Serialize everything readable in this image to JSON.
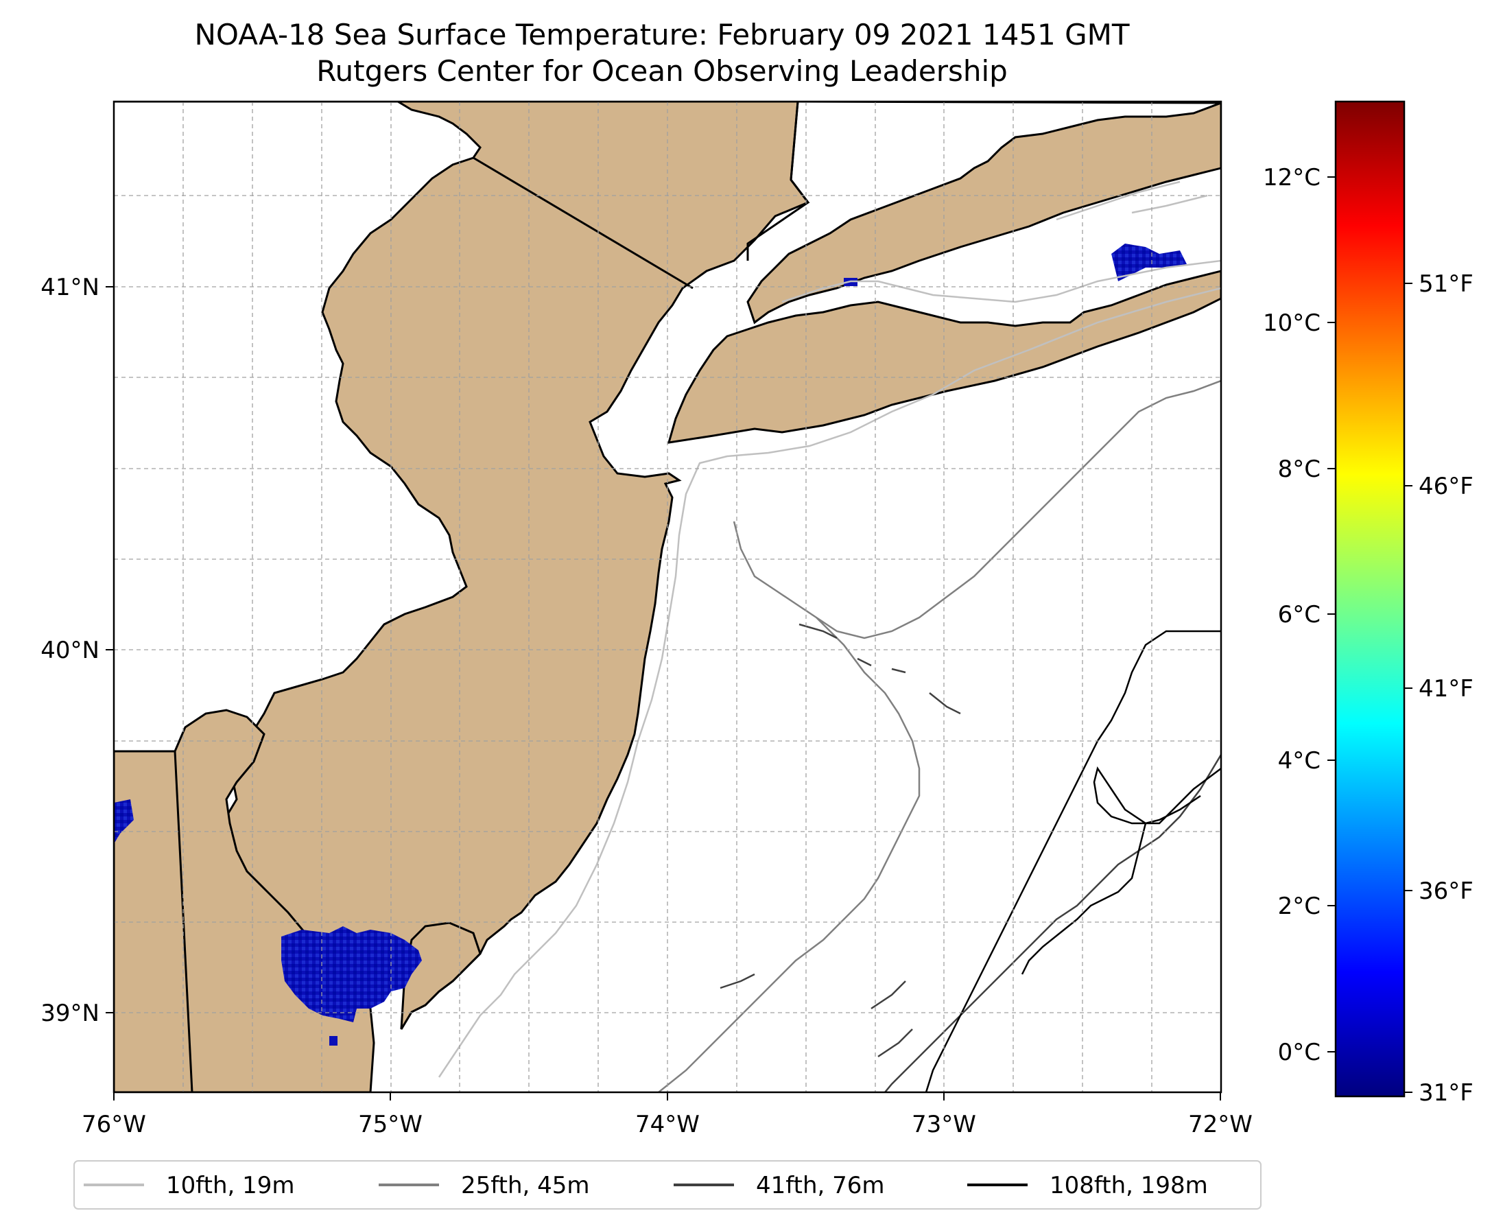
{
  "title": {
    "line1": "NOAA-18 Sea Surface Temperature: February 09 2021 1451 GMT",
    "line2": "Rutgers Center for Ocean Observing Leadership"
  },
  "map": {
    "lon_range": [
      -76,
      -72
    ],
    "lat_range": [
      38.7,
      41.5
    ],
    "lon_ticks": [
      "76°W",
      "75°W",
      "74°W",
      "73°W",
      "72°W"
    ],
    "lat_ticks": [
      "41°N",
      "40°N",
      "39°N"
    ],
    "grid": "dashed",
    "land_color": "#d2b48c",
    "ocean_color": "#ffffff"
  },
  "colorbar": {
    "colormap": "jet",
    "celsius_ticks": [
      "12°C",
      "10°C",
      "8°C",
      "6°C",
      "4°C",
      "2°C",
      "0°C"
    ],
    "fahrenheit_ticks": [
      "51°F",
      "46°F",
      "41°F",
      "36°F",
      "31°F"
    ],
    "colors": [
      "#00007f",
      "#0000ff",
      "#007fff",
      "#00ffff",
      "#7fff7f",
      "#ffff00",
      "#ff7f00",
      "#ff0000",
      "#7f0000"
    ]
  },
  "legend": {
    "placement": "bottom",
    "items": [
      {
        "label": "10fth, 19m",
        "color": "#c0c0c0"
      },
      {
        "label": "25fth, 45m",
        "color": "#808080"
      },
      {
        "label": "41fth, 76m",
        "color": "#404040"
      },
      {
        "label": "108fth, 198m",
        "color": "#000000"
      }
    ]
  }
}
